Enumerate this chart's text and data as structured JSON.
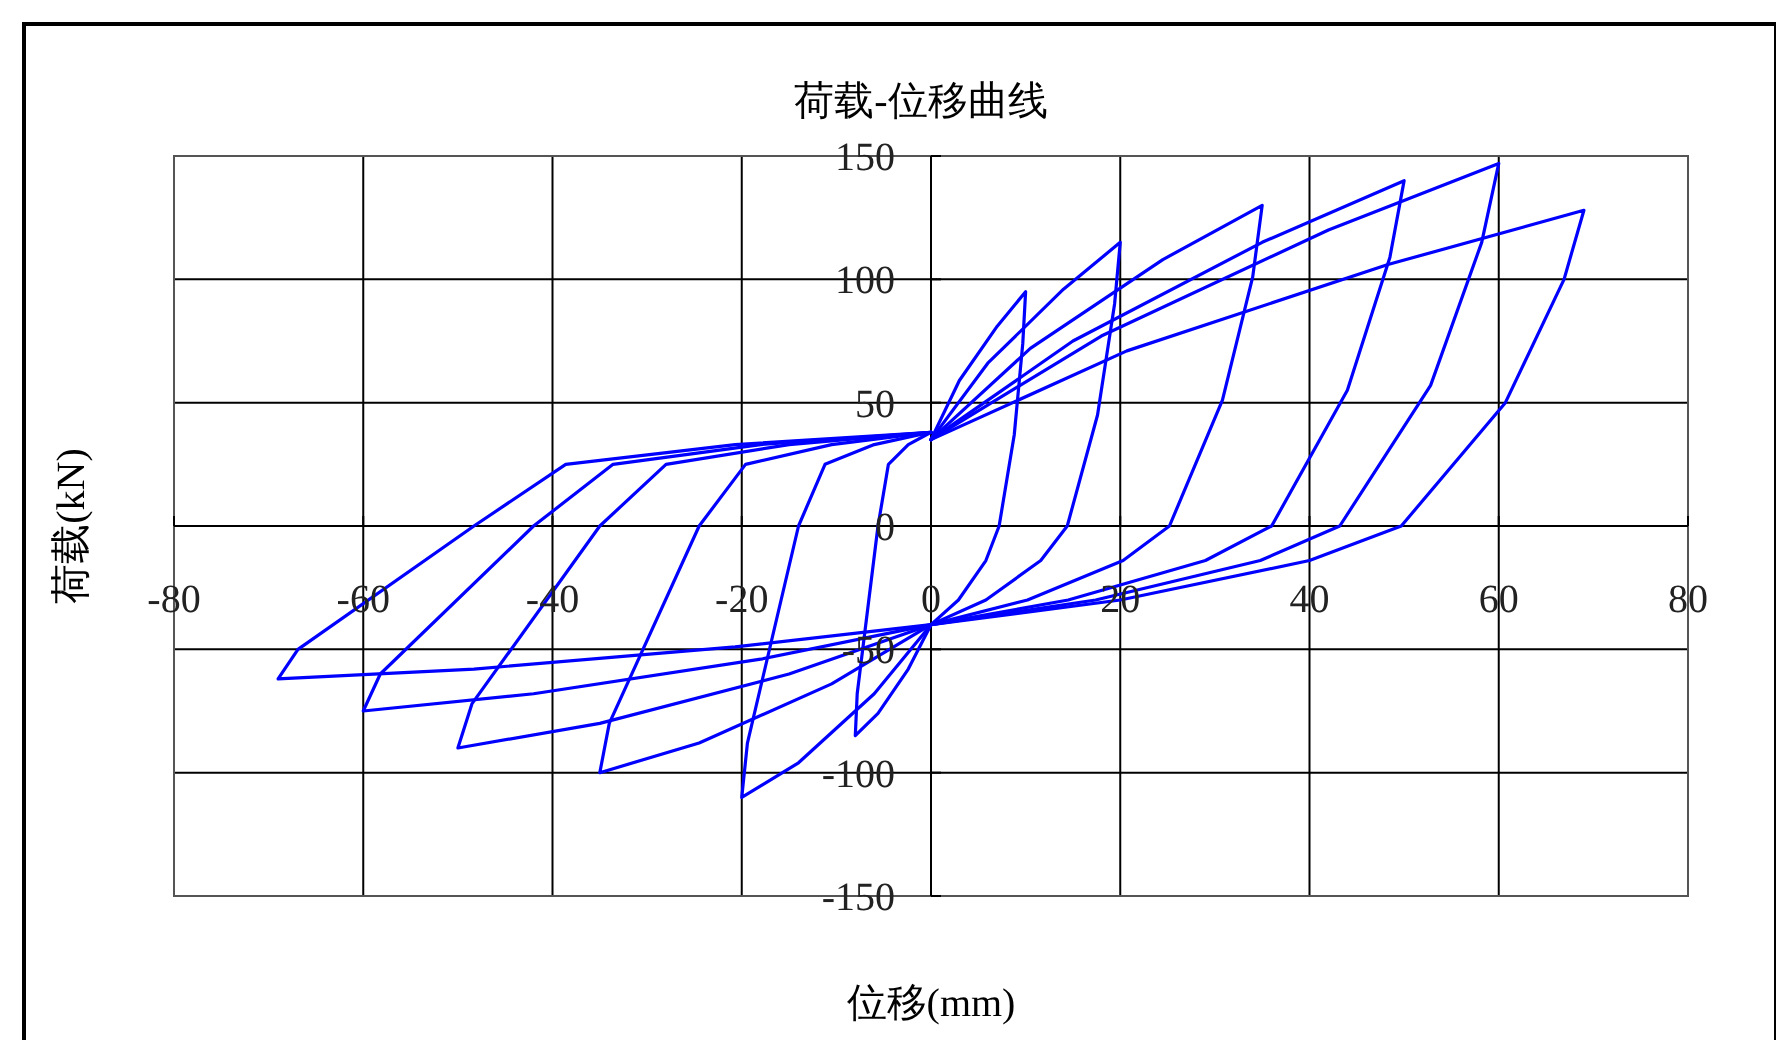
{
  "chart_data": {
    "type": "line",
    "title": "荷载-位移曲线",
    "xlabel": "位移(mm)",
    "ylabel": "荷载(kN)",
    "xlim": [
      -80,
      80
    ],
    "ylim": [
      -150,
      150
    ],
    "xticks": [
      -80,
      -60,
      -40,
      -20,
      0,
      20,
      40,
      60,
      80
    ],
    "yticks": [
      -150,
      -100,
      -50,
      0,
      50,
      100,
      150
    ],
    "grid": true,
    "series": [
      {
        "color": "#0000ff",
        "x": [
          0,
          3,
          7,
          10,
          9.7,
          8.8,
          7.2,
          5.8,
          2.9,
          0,
          -2.4,
          -5.6,
          -8,
          -7.8,
          -5.6,
          -4.5,
          -2.4,
          0
        ],
        "values": [
          35,
          59,
          81,
          95,
          74,
          37,
          0,
          -14,
          -30,
          -40,
          -58,
          -76,
          -85,
          -68,
          0,
          25,
          33,
          38
        ]
      },
      {
        "color": "#0000ff",
        "x": [
          0,
          6,
          14,
          20,
          19.4,
          17.6,
          14.4,
          11.6,
          5.8,
          0,
          -6,
          -14,
          -20,
          -19.4,
          -14,
          -11.2,
          -6,
          0
        ],
        "values": [
          35,
          66,
          96,
          115,
          90,
          45,
          0,
          -14,
          -30,
          -40,
          -68,
          -96,
          -110,
          -88,
          0,
          25,
          33,
          38
        ]
      },
      {
        "color": "#0000ff",
        "x": [
          0,
          10.5,
          24.5,
          35,
          34,
          30.8,
          25.2,
          20.3,
          10.2,
          0,
          -10.5,
          -24.5,
          -35,
          -34,
          -24.5,
          -19.6,
          -10.5,
          0
        ],
        "values": [
          35,
          72,
          108,
          130,
          101,
          51,
          0,
          -14,
          -30,
          -40,
          -64,
          -88,
          -100,
          -80,
          0,
          25,
          33,
          38
        ]
      },
      {
        "color": "#0000ff",
        "x": [
          0,
          15,
          35,
          50,
          48.5,
          44,
          36,
          29,
          14.5,
          0,
          -15,
          -35,
          -50,
          -48.5,
          -35,
          -28,
          -15,
          0
        ],
        "values": [
          35,
          75,
          115,
          140,
          109,
          55,
          0,
          -14,
          -30,
          -40,
          -60,
          -80,
          -90,
          -72,
          0,
          25,
          33,
          38
        ]
      },
      {
        "color": "#0000ff",
        "x": [
          0,
          18,
          42,
          60,
          58.2,
          52.8,
          43.2,
          34.8,
          17.4,
          0,
          -18,
          -42,
          -60,
          -58.2,
          -42,
          -33.6,
          -18,
          0
        ],
        "values": [
          35,
          77,
          120,
          147,
          115,
          57,
          0,
          -14,
          -30,
          -40,
          -54,
          -68,
          -75,
          -60,
          0,
          25,
          33,
          38
        ]
      },
      {
        "color": "#0000ff",
        "x": [
          0,
          20.7,
          48.3,
          69,
          66.9,
          60.7,
          49.7,
          40,
          20,
          0,
          -20.7,
          -48.3,
          -69,
          -66.9,
          -48.3,
          -38.6,
          -20.7,
          0
        ],
        "values": [
          35,
          71,
          106,
          128,
          100,
          50,
          0,
          -14,
          -30,
          -40,
          -49,
          -58,
          -62,
          -50,
          0,
          25,
          33,
          38
        ]
      }
    ]
  }
}
